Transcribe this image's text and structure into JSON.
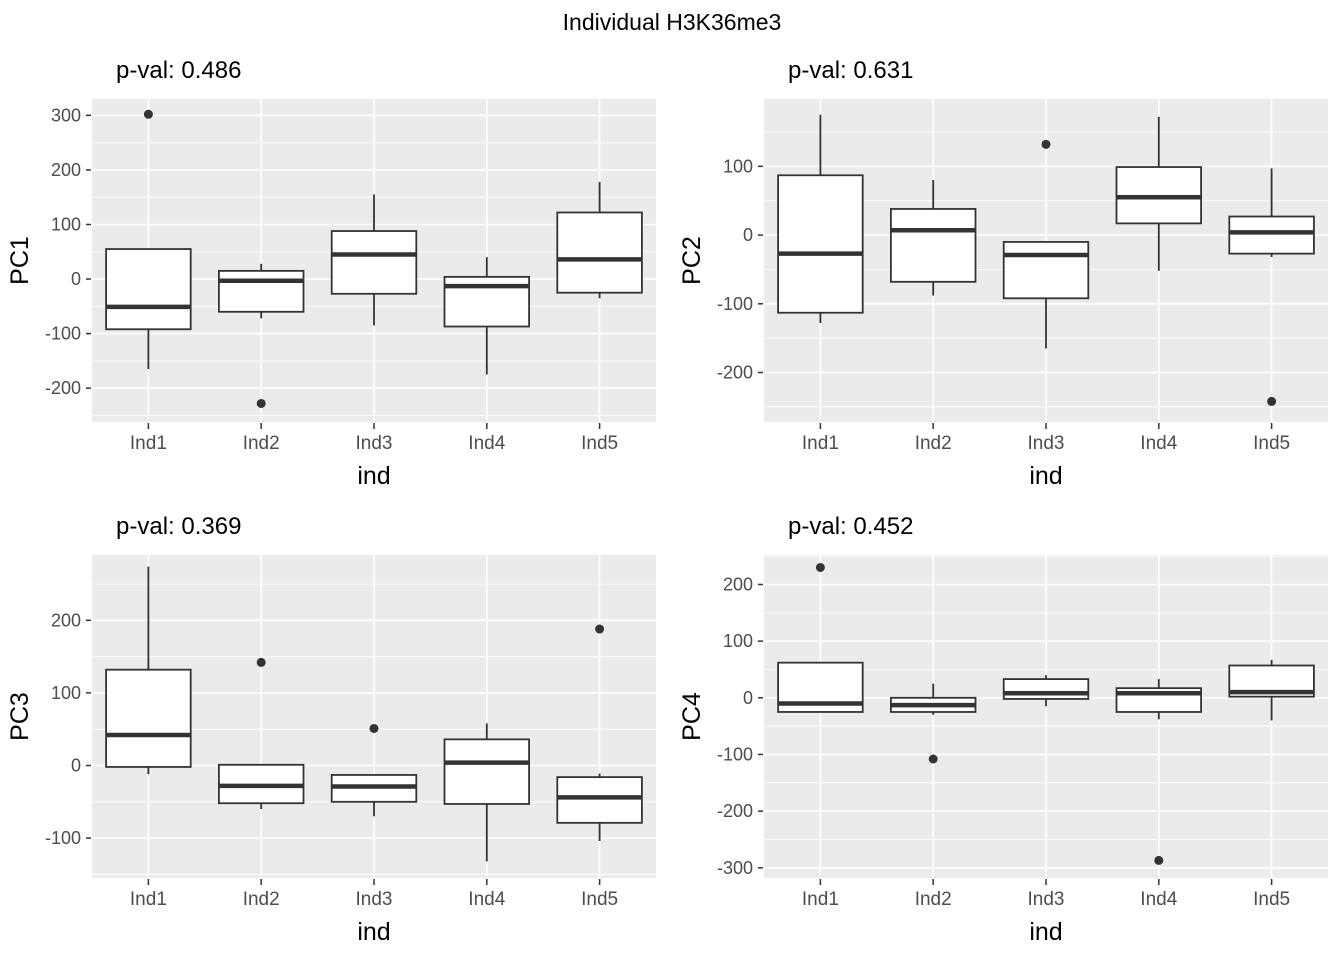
{
  "title": "Individual H3K36me3",
  "style": {
    "panel_bg": "#EBEBEB",
    "grid_color": "#FFFFFF",
    "box_stroke": "#333333",
    "box_fill": "#FFFFFF",
    "outlier_color": "#333333",
    "tick_mark_color": "#333333",
    "tick_label_color": "#4D4D4D",
    "text_color": "#000000"
  },
  "chart_data": [
    {
      "type": "boxplot",
      "subtitle": "p-val: 0.486",
      "ylabel": "PC1",
      "xlabel": "ind",
      "categories": [
        "Ind1",
        "Ind2",
        "Ind3",
        "Ind4",
        "Ind5"
      ],
      "ylim": [
        -262,
        330
      ],
      "yticks": [
        300,
        200,
        100,
        0,
        -100,
        -200
      ],
      "grid": true,
      "boxes": [
        {
          "category": "Ind1",
          "whisker_low": -165,
          "q1": -92,
          "median": -51,
          "q3": 55,
          "whisker_high": 55,
          "outliers": [
            302
          ]
        },
        {
          "category": "Ind2",
          "whisker_low": -72,
          "q1": -60,
          "median": -3,
          "q3": 15,
          "whisker_high": 28,
          "outliers": [
            -228
          ]
        },
        {
          "category": "Ind3",
          "whisker_low": -85,
          "q1": -27,
          "median": 45,
          "q3": 88,
          "whisker_high": 155,
          "outliers": []
        },
        {
          "category": "Ind4",
          "whisker_low": -175,
          "q1": -87,
          "median": -13,
          "q3": 4,
          "whisker_high": 40,
          "outliers": []
        },
        {
          "category": "Ind5",
          "whisker_low": -35,
          "q1": -25,
          "median": 36,
          "q3": 122,
          "whisker_high": 178,
          "outliers": []
        }
      ]
    },
    {
      "type": "boxplot",
      "subtitle": "p-val: 0.631",
      "ylabel": "PC2",
      "xlabel": "ind",
      "categories": [
        "Ind1",
        "Ind2",
        "Ind3",
        "Ind4",
        "Ind5"
      ],
      "ylim": [
        -272,
        198
      ],
      "yticks": [
        100,
        0,
        -100,
        -200
      ],
      "grid": true,
      "boxes": [
        {
          "category": "Ind1",
          "whisker_low": -128,
          "q1": -113,
          "median": -27,
          "q3": 87,
          "whisker_high": 175,
          "outliers": []
        },
        {
          "category": "Ind2",
          "whisker_low": -88,
          "q1": -68,
          "median": 7,
          "q3": 38,
          "whisker_high": 80,
          "outliers": []
        },
        {
          "category": "Ind3",
          "whisker_low": -165,
          "q1": -92,
          "median": -29,
          "q3": -10,
          "whisker_high": -10,
          "outliers": [
            132
          ]
        },
        {
          "category": "Ind4",
          "whisker_low": -52,
          "q1": 17,
          "median": 55,
          "q3": 99,
          "whisker_high": 172,
          "outliers": []
        },
        {
          "category": "Ind5",
          "whisker_low": -32,
          "q1": -27,
          "median": 4,
          "q3": 27,
          "whisker_high": 97,
          "outliers": [
            -242
          ]
        }
      ]
    },
    {
      "type": "boxplot",
      "subtitle": "p-val: 0.369",
      "ylabel": "PC3",
      "xlabel": "ind",
      "categories": [
        "Ind1",
        "Ind2",
        "Ind3",
        "Ind4",
        "Ind5"
      ],
      "ylim": [
        -155,
        290
      ],
      "yticks": [
        200,
        100,
        0,
        -100
      ],
      "grid": true,
      "boxes": [
        {
          "category": "Ind1",
          "whisker_low": -12,
          "q1": -2,
          "median": 42,
          "q3": 132,
          "whisker_high": 274,
          "outliers": []
        },
        {
          "category": "Ind2",
          "whisker_low": -60,
          "q1": -52,
          "median": -28,
          "q3": 1,
          "whisker_high": 1,
          "outliers": [
            142
          ]
        },
        {
          "category": "Ind3",
          "whisker_low": -70,
          "q1": -50,
          "median": -29,
          "q3": -13,
          "whisker_high": -13,
          "outliers": [
            51
          ]
        },
        {
          "category": "Ind4",
          "whisker_low": -132,
          "q1": -53,
          "median": 4,
          "q3": 36,
          "whisker_high": 58,
          "outliers": []
        },
        {
          "category": "Ind5",
          "whisker_low": -104,
          "q1": -79,
          "median": -44,
          "q3": -16,
          "whisker_high": -11,
          "outliers": [
            188
          ]
        }
      ]
    },
    {
      "type": "boxplot",
      "subtitle": "p-val: 0.452",
      "ylabel": "PC4",
      "xlabel": "ind",
      "categories": [
        "Ind1",
        "Ind2",
        "Ind3",
        "Ind4",
        "Ind5"
      ],
      "ylim": [
        -318,
        252
      ],
      "yticks": [
        200,
        100,
        0,
        -100,
        -200,
        -300
      ],
      "grid": true,
      "boxes": [
        {
          "category": "Ind1",
          "whisker_low": -25,
          "q1": -25,
          "median": -10,
          "q3": 62,
          "whisker_high": 62,
          "outliers": [
            230
          ]
        },
        {
          "category": "Ind2",
          "whisker_low": -30,
          "q1": -25,
          "median": -13,
          "q3": 0,
          "whisker_high": 25,
          "outliers": [
            -108
          ]
        },
        {
          "category": "Ind3",
          "whisker_low": -15,
          "q1": -2,
          "median": 8,
          "q3": 33,
          "whisker_high": 40,
          "outliers": []
        },
        {
          "category": "Ind4",
          "whisker_low": -38,
          "q1": -25,
          "median": 8,
          "q3": 17,
          "whisker_high": 33,
          "outliers": [
            -287
          ]
        },
        {
          "category": "Ind5",
          "whisker_low": -40,
          "q1": 2,
          "median": 10,
          "q3": 57,
          "whisker_high": 67,
          "outliers": []
        }
      ]
    }
  ]
}
